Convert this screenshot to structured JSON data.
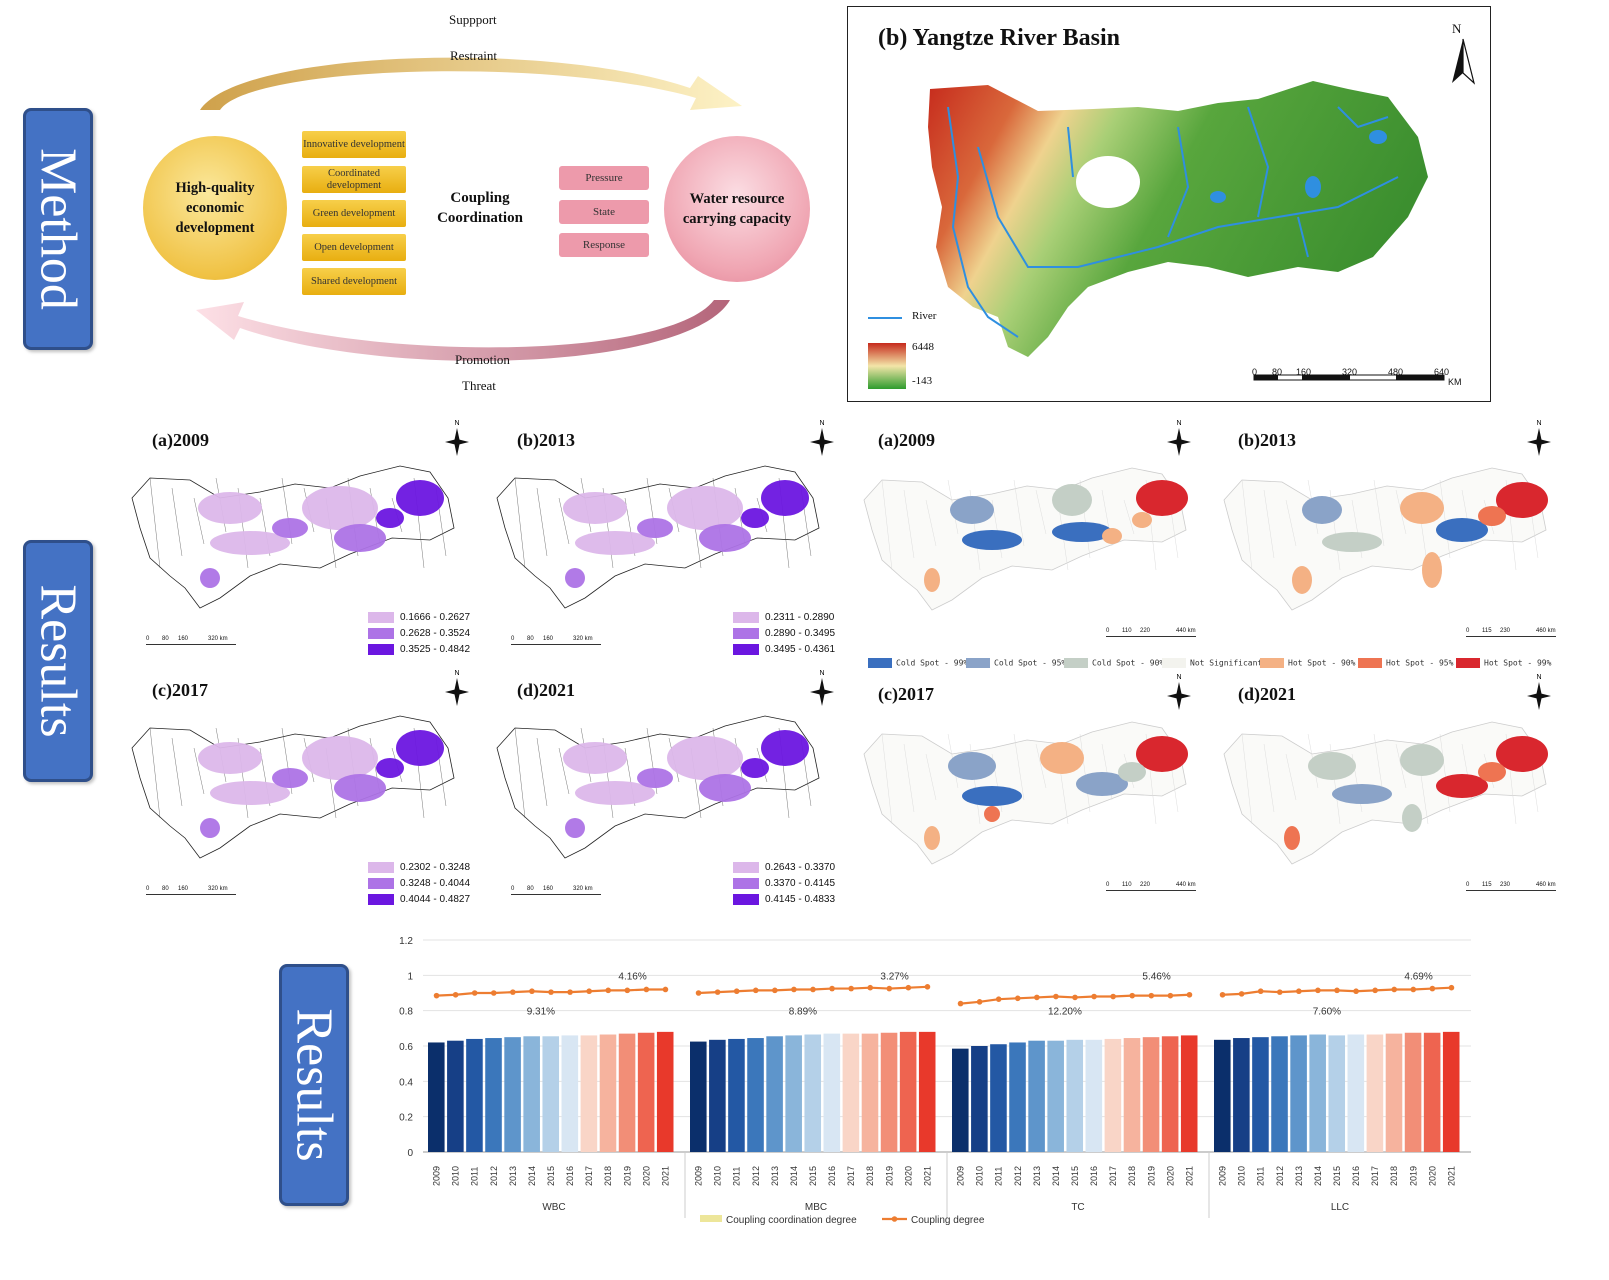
{
  "side_tabs": {
    "method": "Method",
    "results_1": "Results",
    "results_2": "Results"
  },
  "method": {
    "support": "Suppport",
    "restraint": "Restraint",
    "promotion": "Promotion",
    "threat": "Threat",
    "left_circle": "High-quality economic development",
    "right_circle": "Water resource carrying capacity",
    "center": "Coupling Coordination",
    "dimensions": [
      "Innovative development",
      "Coordinated development",
      "Green development",
      "Open development",
      "Shared development"
    ],
    "psr": [
      "Pressure",
      "State",
      "Response"
    ]
  },
  "basin_map": {
    "title": "(b) Yangtze River Basin",
    "north": "N",
    "legend_river": "River",
    "elev_max": "6448",
    "elev_min": "-143",
    "scale_ticks": [
      "0",
      "80",
      "160",
      "320",
      "480",
      "640"
    ],
    "scale_unit": "KM"
  },
  "purple_maps": [
    {
      "title": "(a)2009",
      "classes": [
        "0.1666 - 0.2627",
        "0.2628 - 0.3524",
        "0.3525 - 0.4842"
      ]
    },
    {
      "title": "(b)2013",
      "classes": [
        "0.2311 - 0.2890",
        "0.2890 - 0.3495",
        "0.3495 - 0.4361"
      ]
    },
    {
      "title": "(c)2017",
      "classes": [
        "0.2302 - 0.3248",
        "0.3248 - 0.4044",
        "0.4044 - 0.4827"
      ]
    },
    {
      "title": "(d)2021",
      "classes": [
        "0.2643 - 0.3370",
        "0.3370 - 0.4145",
        "0.4145 - 0.4833"
      ]
    }
  ],
  "purple_colors": [
    "#dcb7ea",
    "#ad73e6",
    "#6b16e0"
  ],
  "purple_scale": [
    "0",
    "80",
    "160",
    "320 km"
  ],
  "hotspot_maps": [
    {
      "title": "(a)2009"
    },
    {
      "title": "(b)2013"
    },
    {
      "title": "(c)2017"
    },
    {
      "title": "(d)2021"
    }
  ],
  "hotspot_scale_a": [
    "0",
    "110",
    "220",
    "440 km"
  ],
  "hotspot_scale_b": [
    "0",
    "115",
    "230",
    "460 km"
  ],
  "hotspot_legend": [
    {
      "label": "Cold Spot - 99%",
      "color": "#3a6fbf"
    },
    {
      "label": "Cold Spot - 95%",
      "color": "#8aa3c8"
    },
    {
      "label": "Cold Spot - 90%",
      "color": "#c4cfc6"
    },
    {
      "label": "Not Significant",
      "color": "#f3f3ee"
    },
    {
      "label": "Hot Spot - 90%",
      "color": "#f4b184"
    },
    {
      "label": "Hot Spot - 95%",
      "color": "#ee7452"
    },
    {
      "label": "Hot Spot - 99%",
      "color": "#d9272e"
    }
  ],
  "chart_data": {
    "type": "bar",
    "ylim": [
      0,
      1.2
    ],
    "yticks": [
      "0",
      "0.2",
      "0.4",
      "0.6",
      "0.8",
      "1",
      "1.2"
    ],
    "years": [
      "2009",
      "2010",
      "2011",
      "2012",
      "2013",
      "2014",
      "2015",
      "2016",
      "2017",
      "2018",
      "2019",
      "2020",
      "2021"
    ],
    "bar_colors": [
      "#0b2f6b",
      "#163f86",
      "#2358a4",
      "#3b77bb",
      "#5e95cb",
      "#8ab5da",
      "#b4d0e8",
      "#d8e6f3",
      "#f9d5c7",
      "#f6b39e",
      "#f28e77",
      "#ee6450",
      "#e8392b"
    ],
    "groups": [
      {
        "name": "WBC",
        "coordination": [
          0.62,
          0.63,
          0.64,
          0.645,
          0.65,
          0.655,
          0.655,
          0.66,
          0.66,
          0.665,
          0.67,
          0.675,
          0.68
        ],
        "coupling": [
          0.885,
          0.89,
          0.9,
          0.9,
          0.905,
          0.91,
          0.905,
          0.905,
          0.91,
          0.915,
          0.915,
          0.92,
          0.92
        ],
        "bar_label": "9.31%",
        "line_label": "4.16%"
      },
      {
        "name": "MBC",
        "coordination": [
          0.625,
          0.635,
          0.64,
          0.645,
          0.655,
          0.66,
          0.665,
          0.67,
          0.67,
          0.67,
          0.675,
          0.68,
          0.68
        ],
        "coupling": [
          0.9,
          0.905,
          0.91,
          0.915,
          0.915,
          0.92,
          0.92,
          0.925,
          0.925,
          0.93,
          0.925,
          0.93,
          0.935
        ],
        "bar_label": "8.89%",
        "line_label": "3.27%"
      },
      {
        "name": "TC",
        "coordination": [
          0.585,
          0.6,
          0.61,
          0.62,
          0.63,
          0.63,
          0.635,
          0.635,
          0.64,
          0.645,
          0.65,
          0.655,
          0.66
        ],
        "coupling": [
          0.84,
          0.85,
          0.865,
          0.87,
          0.875,
          0.88,
          0.875,
          0.88,
          0.88,
          0.885,
          0.885,
          0.885,
          0.89
        ],
        "bar_label": "12.20%",
        "line_label": "5.46%"
      },
      {
        "name": "LLC",
        "coordination": [
          0.635,
          0.645,
          0.65,
          0.655,
          0.66,
          0.665,
          0.66,
          0.665,
          0.665,
          0.67,
          0.675,
          0.675,
          0.68
        ],
        "coupling": [
          0.89,
          0.895,
          0.91,
          0.905,
          0.91,
          0.915,
          0.915,
          0.91,
          0.915,
          0.92,
          0.92,
          0.925,
          0.93
        ],
        "bar_label": "7.60%",
        "line_label": "4.69%"
      }
    ],
    "legend": [
      "Coupling coordination degree",
      "Coupling degree"
    ],
    "line_color": "#ed7d31"
  }
}
